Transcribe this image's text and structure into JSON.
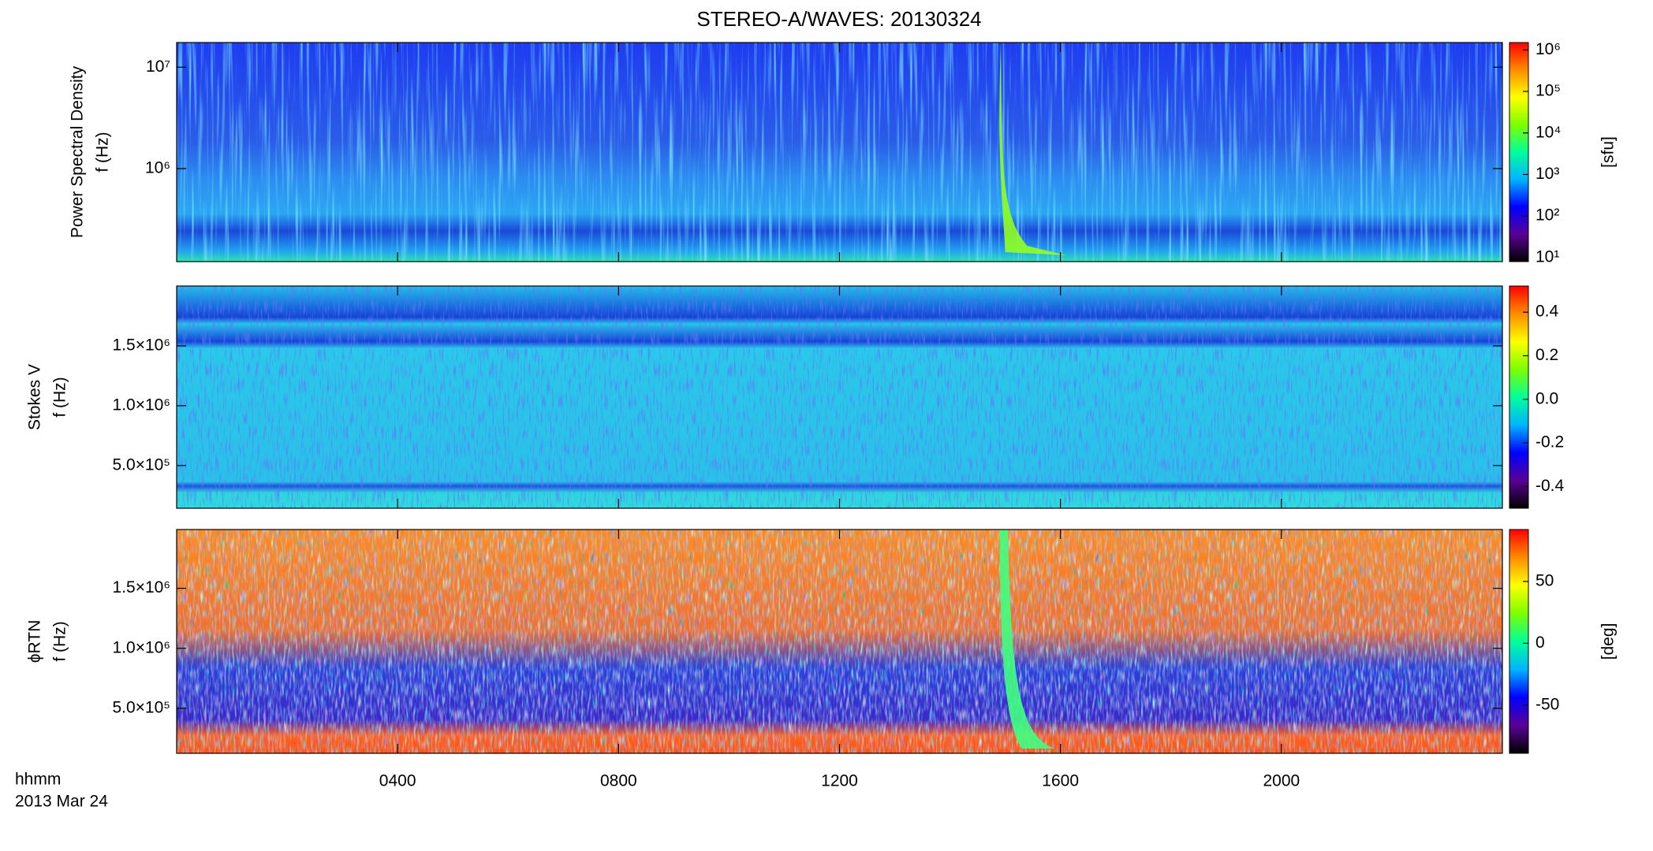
{
  "chart_data": [
    {
      "type": "spectrogram",
      "title": "STEREO-A/WAVES: 20130324",
      "ylabel": [
        "Power Spectral Density",
        "f (Hz)"
      ],
      "ylog": true,
      "ylim": [
        121000,
        17500000
      ],
      "yticks": [
        {
          "value": 1000000,
          "label": "10⁶"
        },
        {
          "value": 10000000,
          "label": "10⁷"
        }
      ],
      "colorbar": {
        "label": "[sfu]",
        "log": true,
        "lim": [
          8,
          1500000
        ],
        "ticks": [
          {
            "value": 10,
            "label": "10¹"
          },
          {
            "value": 100,
            "label": "10²"
          },
          {
            "value": 1000,
            "label": "10³"
          },
          {
            "value": 10000,
            "label": "10⁴"
          },
          {
            "value": 100000,
            "label": "10⁵"
          },
          {
            "value": 1000000,
            "label": "10⁶"
          }
        ]
      },
      "colormap": [
        "#000000",
        "#5a0096",
        "#0000ff",
        "#00b4ff",
        "#00ff9c",
        "#7cff00",
        "#ffff00",
        "#ff8c00",
        "#ff0000"
      ]
    },
    {
      "type": "spectrogram",
      "ylabel": [
        "Stokes V",
        "f (Hz)"
      ],
      "ylog": false,
      "ylim": [
        143000,
        2000000
      ],
      "yticks": [
        {
          "value": 500000,
          "label": "5.0×10⁵"
        },
        {
          "value": 1000000,
          "label": "1.0×10⁶"
        },
        {
          "value": 1500000,
          "label": "1.5×10⁶"
        }
      ],
      "colorbar": {
        "log": false,
        "lim": [
          -0.5,
          0.52
        ],
        "ticks": [
          -0.4,
          -0.2,
          {
            "value": 0,
            "label": "0.0"
          },
          0.2,
          0.4
        ]
      }
    },
    {
      "type": "spectrogram",
      "ylabel": [
        "ϕRTN",
        "f (Hz)"
      ],
      "ylog": false,
      "ylim": [
        125000,
        1990000
      ],
      "yticks": [
        {
          "value": 500000,
          "label": "5.0×10⁵"
        },
        {
          "value": 1000000,
          "label": "1.0×10⁶"
        },
        {
          "value": 1500000,
          "label": "1.5×10⁶"
        }
      ],
      "colorbar": {
        "label": "[deg]",
        "log": false,
        "lim": [
          -89,
          92
        ],
        "ticks": [
          -50,
          0,
          50
        ]
      },
      "xlabel": "hhmm",
      "date": "2013 Mar 24",
      "xlim": [
        0,
        24
      ],
      "xticks": [
        {
          "value": 4,
          "label": "0400"
        },
        {
          "value": 8,
          "label": "0800"
        },
        {
          "value": 12,
          "label": "1200"
        },
        {
          "value": 16,
          "label": "1600"
        },
        {
          "value": 20,
          "label": "2000"
        }
      ]
    }
  ]
}
